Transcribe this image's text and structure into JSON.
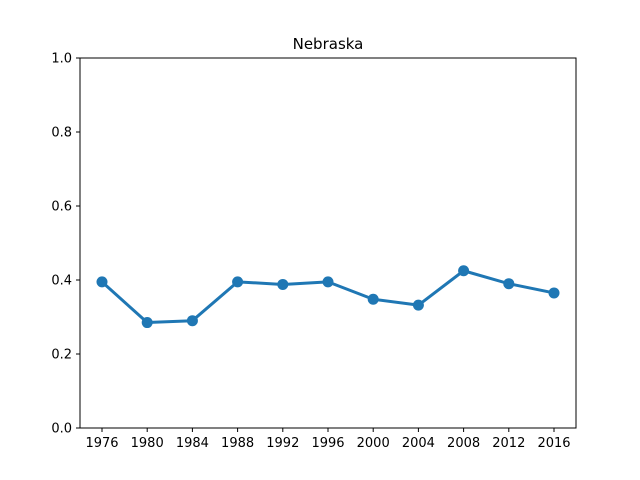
{
  "chart_data": {
    "type": "line",
    "title": "Nebraska",
    "xlabel": "",
    "ylabel": "",
    "categories": [
      "1976",
      "1980",
      "1984",
      "1988",
      "1992",
      "1996",
      "2000",
      "2004",
      "2008",
      "2012",
      "2016"
    ],
    "series": [
      {
        "values": [
          0.395,
          0.285,
          0.29,
          0.395,
          0.388,
          0.395,
          0.348,
          0.332,
          0.425,
          0.39,
          0.365
        ],
        "color": "#1f77b4"
      }
    ],
    "ylim": [
      0,
      1.0
    ],
    "yticks": [
      "0.0",
      "0.2",
      "0.4",
      "0.6",
      "0.8",
      "1.0"
    ],
    "grid": false,
    "legend": "none"
  }
}
